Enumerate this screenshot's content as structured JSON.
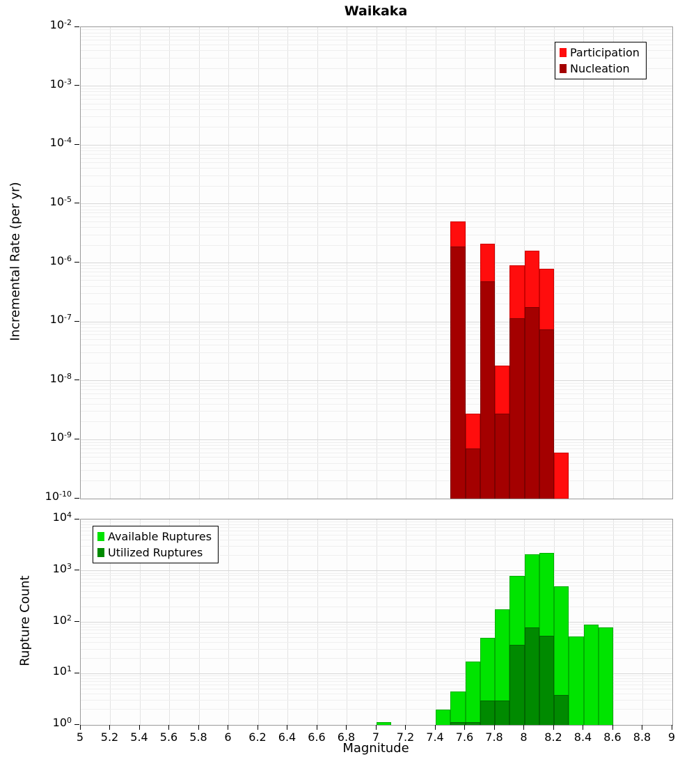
{
  "title": "Waikaka",
  "xlabel": "Magnitude",
  "top_plot": {
    "ylabel": "Incremental Rate (per yr)"
  },
  "bottom_plot": {
    "ylabel": "Rupture Count"
  },
  "chart_data": [
    {
      "type": "bar",
      "panel": "top",
      "title": "Waikaka",
      "xlabel": "Magnitude",
      "ylabel": "Incremental Rate (per yr)",
      "yscale": "log",
      "grid": true,
      "xlim": [
        5,
        9
      ],
      "ylim": [
        1e-10,
        0.01
      ],
      "bar_width": 0.1,
      "legend_position": "top-right",
      "xticks": [
        5,
        5.2,
        5.4,
        5.6,
        5.8,
        6,
        6.2,
        6.4,
        6.6,
        6.8,
        7,
        7.2,
        7.4,
        7.6,
        7.8,
        8,
        8.2,
        8.4,
        8.6,
        8.8,
        9
      ],
      "yticks_exp": [
        -2,
        -3,
        -4,
        -5,
        -6,
        -7,
        -8,
        -9,
        -10
      ],
      "categories": [
        7.55,
        7.65,
        7.75,
        7.85,
        7.95,
        8.05,
        8.15,
        8.25
      ],
      "series": [
        {
          "name": "Participation",
          "color": "#ff0d0d",
          "edge": "#cc0000",
          "values": [
            5e-06,
            2.8e-09,
            2.1e-06,
            1.8e-08,
            9e-07,
            1.6e-06,
            8e-07,
            6e-10
          ]
        },
        {
          "name": "Nucleation",
          "color": "#a40000",
          "edge": "#7c0000",
          "values": [
            1.9e-06,
            7e-10,
            4.8e-07,
            2.8e-09,
            1.15e-07,
            1.8e-07,
            7.5e-08,
            0
          ]
        }
      ]
    },
    {
      "type": "bar",
      "panel": "bottom",
      "title": "",
      "xlabel": "Magnitude",
      "ylabel": "Rupture Count",
      "yscale": "log",
      "grid": true,
      "xlim": [
        5,
        9
      ],
      "ylim": [
        1,
        10000
      ],
      "bar_width": 0.1,
      "legend_position": "top-left",
      "xticks": [
        5,
        5.2,
        5.4,
        5.6,
        5.8,
        6,
        6.2,
        6.4,
        6.6,
        6.8,
        7,
        7.2,
        7.4,
        7.6,
        7.8,
        8,
        8.2,
        8.4,
        8.6,
        8.8,
        9
      ],
      "yticks_exp": [
        4,
        3,
        2,
        1,
        0
      ],
      "categories": [
        7.05,
        7.45,
        7.55,
        7.65,
        7.75,
        7.85,
        7.95,
        8.05,
        8.15,
        8.25,
        8.35,
        8.45,
        8.55
      ],
      "series": [
        {
          "name": "Available Ruptures",
          "color": "#00e400",
          "edge": "#00b000",
          "values": [
            1.15,
            2,
            4.5,
            17,
            50,
            180,
            800,
            2100,
            2250,
            500,
            52,
            90,
            78
          ]
        },
        {
          "name": "Utilized Ruptures",
          "color": "#008a00",
          "edge": "#006600",
          "values": [
            0,
            0,
            1.15,
            1.15,
            3,
            3,
            36,
            80,
            55,
            3.8,
            0,
            0,
            0
          ]
        }
      ]
    }
  ]
}
